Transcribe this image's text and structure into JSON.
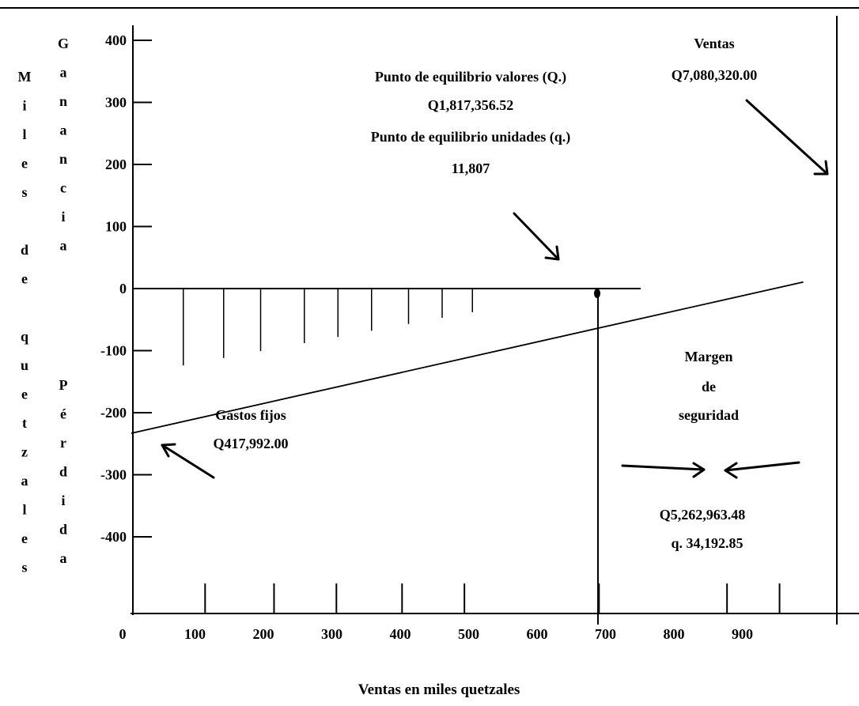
{
  "chart_data": {
    "type": "line",
    "xlabel": "Ventas en miles quetzales",
    "ylabel_left": [
      "M",
      "i",
      "l",
      "e",
      "s",
      "",
      "d",
      "e",
      "",
      "q",
      "u",
      "e",
      "t",
      "z",
      "a",
      "l",
      "e",
      "s"
    ],
    "ylabel_gain": [
      "G",
      "a",
      "n",
      "a",
      "n",
      "c",
      "i",
      "a"
    ],
    "ylabel_loss": [
      "P",
      "é",
      "r",
      "d",
      "i",
      "d",
      "a"
    ],
    "x_ticks": [
      0,
      100,
      200,
      300,
      400,
      500,
      600,
      700,
      800,
      900
    ],
    "y_ticks": [
      400,
      300,
      200,
      100,
      0,
      -100,
      -200,
      -300,
      -400
    ],
    "xlim": [
      0,
      1080
    ],
    "ylim": [
      -530,
      420
    ],
    "series": [
      {
        "x": [
          0,
          870
        ],
        "y": [
          -228,
          36
        ]
      }
    ],
    "break_even_point": {
      "x": 735,
      "y": -4
    },
    "loss_hatch_x": [
      75,
      135,
      190,
      255,
      305,
      355,
      410,
      460,
      505
    ],
    "bottom_marks_x": [
      110,
      215,
      310,
      410,
      505,
      710,
      905,
      985
    ],
    "annotations": {
      "break_even": [
        "Punto de equilibrio valores (Q.)",
        "Q1,817,356.52",
        "Punto de equilibrio unidades (q.)",
        "11,807"
      ],
      "sales": [
        "Ventas",
        "Q7,080,320.00"
      ],
      "fixed_costs": [
        "Gastos fijos",
        "Q417,992.00"
      ],
      "safety_margin": [
        "Margen",
        "de",
        "seguridad"
      ],
      "safety_values": [
        "Q5,262,963.48",
        "q. 34,192.85"
      ]
    }
  }
}
